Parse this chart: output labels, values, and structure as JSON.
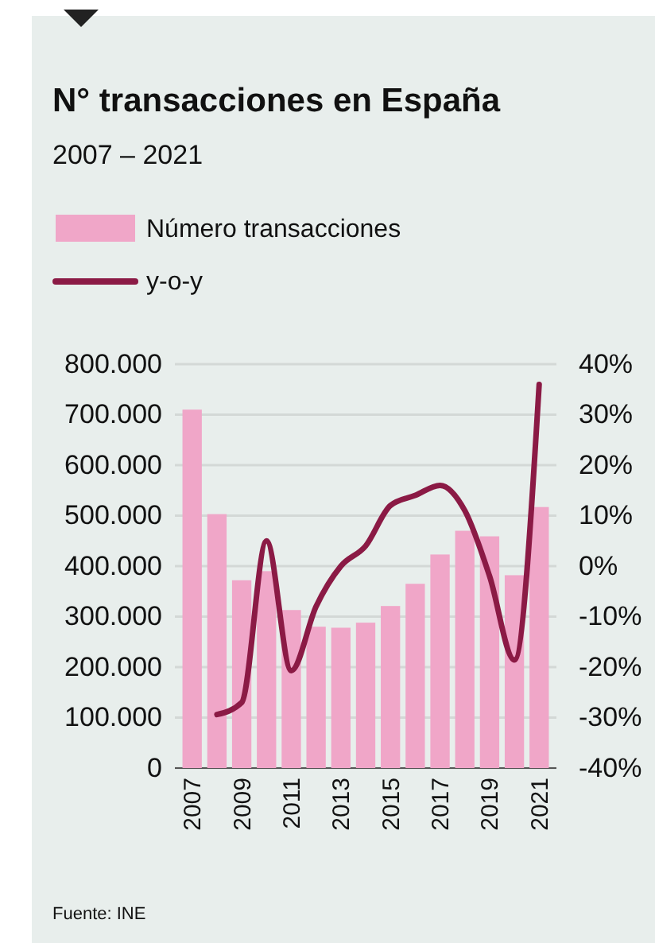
{
  "chart_data": {
    "type": "bar",
    "title": "N° transacciones en España",
    "subtitle": "2007 – 2021",
    "categories": [
      "2007",
      null,
      "2009",
      null,
      "2011",
      null,
      "2013",
      null,
      "2015",
      null,
      "2017",
      null,
      "2019",
      null,
      "2021"
    ],
    "series": [
      {
        "name": "Número transacciones",
        "color": "#f0a6c8",
        "values": [
          710000,
          503000,
          372000,
          390000,
          313000,
          280000,
          278000,
          288000,
          321000,
          365000,
          423000,
          470000,
          459000,
          382000,
          517000
        ]
      },
      {
        "name": "y-o-y",
        "type": "line",
        "axis": "y2",
        "color": "#8b1a45",
        "values": [
          null,
          -29.4,
          -27,
          5,
          -20.7,
          -8,
          0,
          4,
          12,
          14,
          16,
          11,
          -2,
          -18.6,
          36
        ]
      }
    ],
    "ylim": [
      0,
      800000
    ],
    "yticks": [
      {
        "value": 0,
        "label": "0"
      },
      {
        "value": 100000,
        "label": "100.000"
      },
      {
        "value": 200000,
        "label": "200.000"
      },
      {
        "value": 300000,
        "label": "300.000"
      },
      {
        "value": 400000,
        "label": "400.000"
      },
      {
        "value": 500000,
        "label": "500.000"
      },
      {
        "value": 600000,
        "label": "600.000"
      },
      {
        "value": 700000,
        "label": "700.000"
      },
      {
        "value": 800000,
        "label": "800.000"
      }
    ],
    "y2lim": [
      -40,
      40
    ],
    "y2ticks": [
      {
        "value": -40,
        "label": "-40%"
      },
      {
        "value": -30,
        "label": "-30%"
      },
      {
        "value": -20,
        "label": "-20%"
      },
      {
        "value": -10,
        "label": "-10%"
      },
      {
        "value": 0,
        "label": "0%"
      },
      {
        "value": 10,
        "label": "10%"
      },
      {
        "value": 20,
        "label": "20%"
      },
      {
        "value": 30,
        "label": "30%"
      },
      {
        "value": 40,
        "label": "40%"
      }
    ],
    "grid": "y",
    "legend": "top",
    "marker": "none",
    "line_style": "solid",
    "annotations": [
      "Fuente: INE"
    ]
  }
}
